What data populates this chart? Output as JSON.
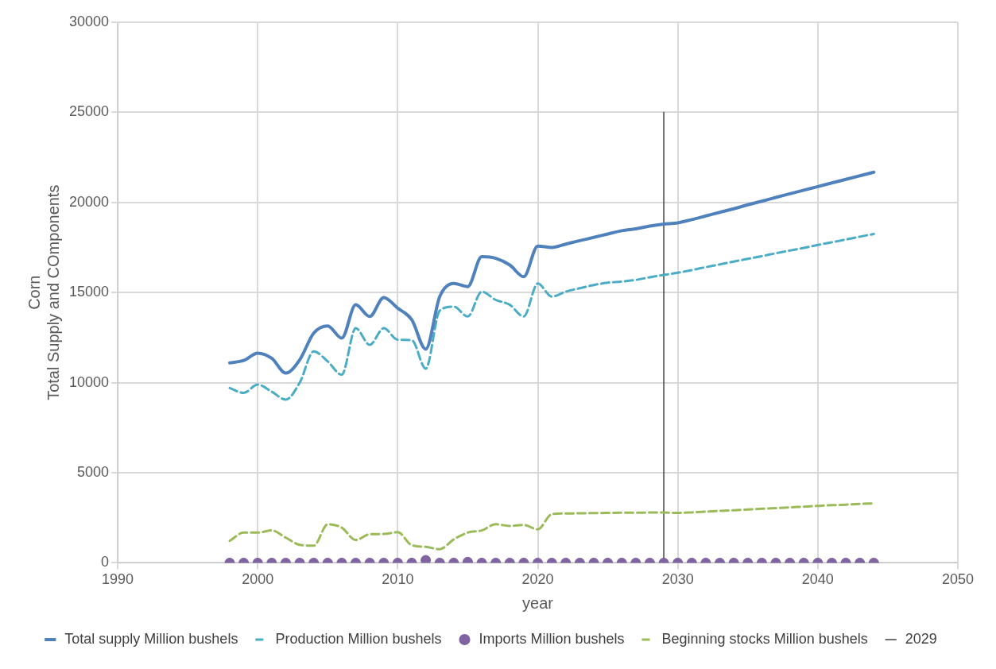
{
  "chart_data": {
    "type": "line",
    "xlabel": "year",
    "ylabel": "Corn\nTotal Supply and COmponents",
    "x": [
      1998,
      1999,
      2000,
      2001,
      2002,
      2003,
      2004,
      2005,
      2006,
      2007,
      2008,
      2009,
      2010,
      2011,
      2012,
      2013,
      2014,
      2015,
      2016,
      2017,
      2018,
      2019,
      2020,
      2021,
      2022,
      2023,
      2024,
      2025,
      2026,
      2027,
      2028,
      2029,
      2030,
      2031,
      2032,
      2033,
      2034,
      2035,
      2036,
      2037,
      2038,
      2039,
      2040,
      2041,
      2042,
      2043,
      2044
    ],
    "series": [
      {
        "name": "Total supply Million bushels",
        "color": "#4f81bd",
        "line_style": "solid",
        "marker": "none",
        "values": [
          11100,
          11230,
          11640,
          11350,
          10530,
          11270,
          12750,
          13150,
          12470,
          14320,
          13670,
          14720,
          14130,
          13490,
          11860,
          14780,
          15510,
          15330,
          16990,
          16900,
          16530,
          15880,
          17580,
          17500,
          17690,
          17880,
          18060,
          18250,
          18430,
          18540,
          18690,
          18800,
          18870,
          19050,
          19250,
          19450,
          19650,
          19870,
          20070,
          20280,
          20480,
          20680,
          20880,
          21080,
          21280,
          21480,
          21680
        ]
      },
      {
        "name": "Production Million bushels",
        "color": "#4bacc6",
        "line_style": "dashed",
        "marker": "none",
        "values": [
          9700,
          9430,
          9890,
          9500,
          9060,
          10000,
          11730,
          11180,
          10440,
          13020,
          12100,
          13020,
          12380,
          12360,
          10780,
          14000,
          14220,
          13670,
          15050,
          14590,
          14320,
          13670,
          15500,
          14780,
          15050,
          15240,
          15420,
          15550,
          15610,
          15700,
          15850,
          15980,
          16100,
          16250,
          16410,
          16560,
          16720,
          16870,
          17020,
          17180,
          17330,
          17480,
          17640,
          17790,
          17940,
          18100,
          18250
        ]
      },
      {
        "name": "Imports Million bushels",
        "color": "#8064a2",
        "type": "scatter",
        "marker": "circle",
        "values": [
          0,
          0,
          0,
          0,
          0,
          0,
          0,
          0,
          0,
          0,
          0,
          0,
          0,
          0,
          150,
          0,
          0,
          50,
          0,
          0,
          0,
          0,
          0,
          0,
          0,
          0,
          0,
          0,
          0,
          0,
          0,
          0,
          0,
          0,
          0,
          0,
          0,
          0,
          0,
          0,
          0,
          0,
          0,
          0,
          0,
          0,
          0
        ]
      },
      {
        "name": "Beginning stocks Million bushels",
        "color": "#9bbb59",
        "line_style": "dashed",
        "marker": "none",
        "values": [
          1220,
          1680,
          1680,
          1800,
          1400,
          1000,
          950,
          2140,
          1950,
          1270,
          1590,
          1600,
          1700,
          980,
          890,
          760,
          1300,
          1680,
          1800,
          2140,
          2050,
          2100,
          1860,
          2700,
          2740,
          2750,
          2760,
          2770,
          2780,
          2780,
          2790,
          2790,
          2770,
          2800,
          2840,
          2880,
          2920,
          2960,
          3000,
          3040,
          3080,
          3120,
          3160,
          3200,
          3230,
          3270,
          3300
        ]
      },
      {
        "name": "2029",
        "color": "#404040",
        "line_style": "solid",
        "marker": "none",
        "x": [
          2029,
          2029
        ],
        "values": [
          0,
          25000
        ]
      }
    ],
    "xlim": [
      1990,
      2050
    ],
    "xticks": [
      1990,
      2000,
      2010,
      2020,
      2030,
      2040,
      2050
    ],
    "ylim": [
      0,
      30000
    ],
    "yticks": [
      0,
      5000,
      10000,
      15000,
      20000,
      25000,
      30000
    ],
    "grid": true,
    "legend": "bottom"
  }
}
